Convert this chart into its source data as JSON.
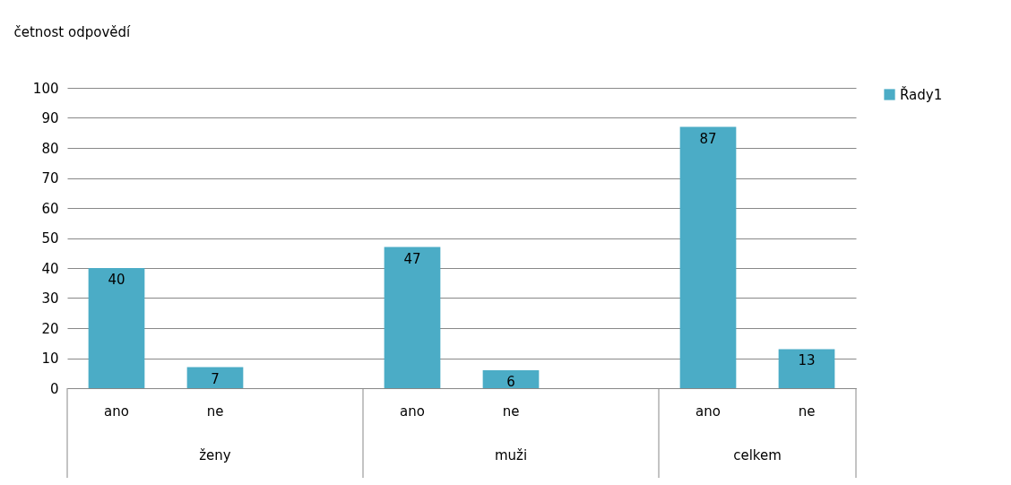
{
  "chart_data": {
    "type": "bar",
    "ylabel": "četnost odpovědí",
    "categories": [
      "ano",
      "ne",
      null,
      "ano",
      "ne",
      null,
      "ano",
      "ne"
    ],
    "series": [
      {
        "name": "Řady1",
        "color": "#4bacc6",
        "values": [
          40,
          7,
          null,
          47,
          6,
          null,
          87,
          13
        ]
      }
    ],
    "annotations": [
      "ženy",
      "muži",
      "celkem"
    ],
    "ylim": [
      0,
      100
    ],
    "yticks": [
      0,
      10,
      20,
      30,
      40,
      50,
      60,
      70,
      80,
      90,
      100
    ],
    "grid": "y",
    "legend": "right",
    "data_labels": true
  }
}
